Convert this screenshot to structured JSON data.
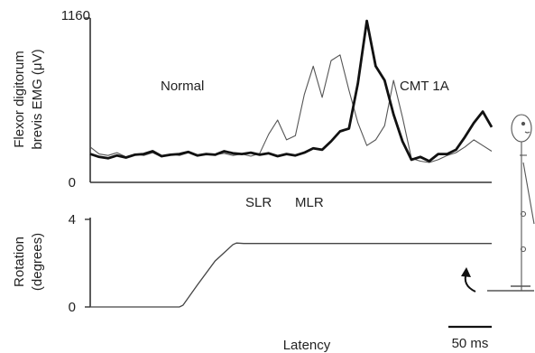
{
  "chart_data": [
    {
      "type": "line",
      "ylabel_line1": "Flexor digitorum",
      "ylabel_line2": "brevis EMG (μV)",
      "ylim": [
        0,
        1160
      ],
      "yticks": [
        "0",
        "1160"
      ],
      "annotations": [
        "Normal",
        "CMT 1A",
        "SLR",
        "MLR"
      ],
      "series": [
        {
          "name": "Normal",
          "color": "#555555",
          "x": [
            0,
            5,
            10,
            15,
            20,
            25,
            30,
            35,
            40,
            45,
            50,
            55,
            60,
            65,
            70,
            75,
            80,
            85,
            90,
            95,
            100,
            105,
            110,
            115,
            120,
            125,
            130,
            135,
            140,
            145,
            150,
            155,
            160,
            165,
            170,
            175,
            180,
            185,
            190,
            195,
            200,
            205,
            210,
            215,
            220,
            225
          ],
          "y": [
            250,
            200,
            190,
            210,
            180,
            200,
            190,
            210,
            180,
            200,
            190,
            210,
            185,
            200,
            195,
            205,
            190,
            200,
            185,
            205,
            340,
            440,
            300,
            330,
            620,
            820,
            600,
            860,
            900,
            650,
            420,
            260,
            300,
            400,
            720,
            460,
            170,
            150,
            140,
            160,
            190,
            210,
            250,
            300,
            260,
            220
          ]
        },
        {
          "name": "CMT 1A",
          "color": "#111111",
          "x": [
            0,
            5,
            10,
            15,
            20,
            25,
            30,
            35,
            40,
            45,
            50,
            55,
            60,
            65,
            70,
            75,
            80,
            85,
            90,
            95,
            100,
            105,
            110,
            115,
            120,
            125,
            130,
            135,
            140,
            145,
            150,
            155,
            160,
            165,
            170,
            175,
            180,
            185,
            190,
            195,
            200,
            205,
            210,
            215,
            220,
            225
          ],
          "y": [
            200,
            180,
            170,
            190,
            175,
            195,
            200,
            220,
            185,
            195,
            200,
            215,
            190,
            200,
            195,
            220,
            205,
            200,
            210,
            195,
            205,
            185,
            200,
            190,
            210,
            240,
            230,
            290,
            360,
            380,
            700,
            1140,
            820,
            720,
            480,
            290,
            160,
            180,
            150,
            200,
            200,
            230,
            320,
            420,
            500,
            390
          ]
        }
      ]
    },
    {
      "type": "line",
      "ylabel_line1": "Rotation",
      "ylabel_line2": "(degrees)",
      "ylim": [
        0,
        4
      ],
      "yticks": [
        "0",
        "4"
      ],
      "xlabel": "Latency",
      "scalebar": "50 ms",
      "series": [
        {
          "x": [
            0,
            50,
            52,
            60,
            70,
            80,
            82,
            86,
            90,
            225
          ],
          "y": [
            0,
            0,
            0.08,
            1.0,
            2.1,
            2.85,
            2.92,
            2.9,
            2.9,
            2.9
          ]
        }
      ]
    }
  ]
}
